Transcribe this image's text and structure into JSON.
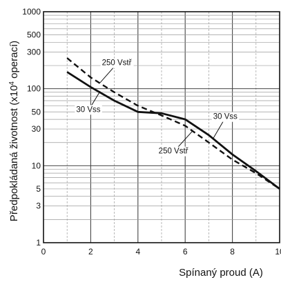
{
  "chart_data": {
    "type": "line",
    "title": "",
    "xlabel": "Spínaný proud (A)",
    "ylabel_main": "Předpokládaná životnost (x10",
    "ylabel_sup": "4",
    "ylabel_tail": " operací)",
    "x_scale": "linear",
    "y_scale": "log",
    "xlim": [
      0,
      10
    ],
    "ylim": [
      1,
      1000
    ],
    "grid": true,
    "x_ticks": [
      {
        "value": 0,
        "label": "0"
      },
      {
        "value": 2,
        "label": "2"
      },
      {
        "value": 4,
        "label": "4"
      },
      {
        "value": 6,
        "label": "6"
      },
      {
        "value": 8,
        "label": "8"
      },
      {
        "value": 10,
        "label": "10"
      }
    ],
    "y_ticks": [
      {
        "value": 1,
        "label": "1"
      },
      {
        "value": 3,
        "label": "3"
      },
      {
        "value": 5,
        "label": "5"
      },
      {
        "value": 10,
        "label": "10"
      },
      {
        "value": 30,
        "label": "30"
      },
      {
        "value": 50,
        "label": "50"
      },
      {
        "value": 100,
        "label": "100"
      },
      {
        "value": 300,
        "label": "300"
      },
      {
        "value": 500,
        "label": "500"
      },
      {
        "value": 1000,
        "label": "1000"
      }
    ],
    "series": [
      {
        "name": "30 Vss",
        "style": "solid",
        "x": [
          1,
          2,
          3,
          4,
          5,
          6,
          7,
          8,
          9,
          10
        ],
        "y": [
          165,
          105,
          70,
          50,
          48,
          40,
          25,
          14,
          8.5,
          5
        ]
      },
      {
        "name": "250 Vstř",
        "style": "dashed",
        "x": [
          1,
          2,
          3,
          4,
          5,
          6,
          7,
          8,
          9,
          10
        ],
        "y": [
          250,
          140,
          90,
          60,
          45,
          33,
          20,
          12,
          8,
          5
        ]
      }
    ],
    "annotations": [
      {
        "text": "250 Vstř",
        "series": "250 Vstř",
        "x": 3.1,
        "y": 210,
        "arrow_to_x": 2.4,
        "arrow_to_y": 120
      },
      {
        "text": "30 Vss",
        "series": "30 Vss",
        "x": 1.9,
        "y": 52,
        "arrow_to_x": 2.4,
        "arrow_to_y": 93
      },
      {
        "text": "30 Vss",
        "series": "30 Vss",
        "x": 7.7,
        "y": 42,
        "arrow_to_x": 7.2,
        "arrow_to_y": 23
      },
      {
        "text": "250 Vstř",
        "series": "250 Vstř",
        "x": 5.5,
        "y": 15,
        "arrow_to_x": 6.3,
        "arrow_to_y": 28
      }
    ]
  }
}
